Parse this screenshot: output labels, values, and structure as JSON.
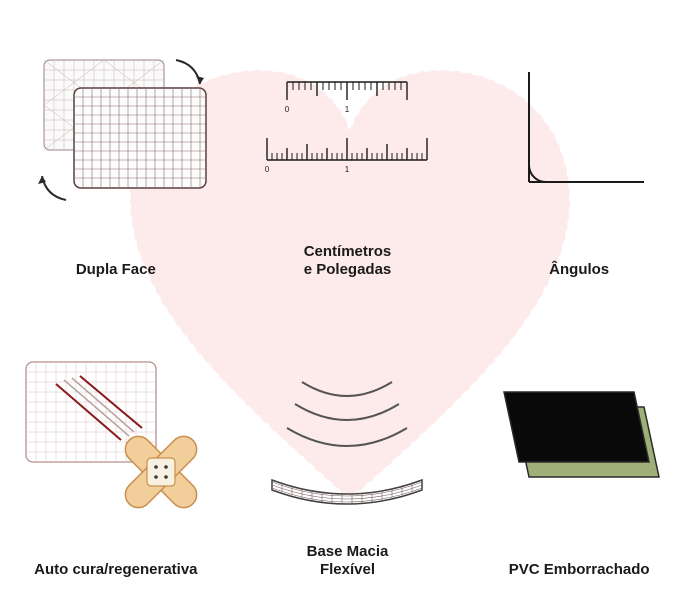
{
  "background_heart_color": "#fde7e7",
  "heart_stitch_color": "#ffffff",
  "features": [
    {
      "label": "Dupla Face",
      "icon": "dupla-face",
      "grid_stroke": "#5a3f3f",
      "grid_fill": "#fafafa",
      "arrow_color": "#2a2a2a",
      "rows": 11,
      "cols": 15
    },
    {
      "label": "Centímetros\ne Polegadas",
      "icon": "ruler",
      "stroke": "#1a1a1a",
      "label_top": [
        "0",
        "1"
      ],
      "label_bottom": [
        "0",
        "1"
      ],
      "font_size": 8
    },
    {
      "label": "Ângulos",
      "icon": "angle",
      "stroke": "#1a1a1a",
      "stroke_width": 2
    },
    {
      "label": "Auto cura/regenerativa",
      "icon": "auto-cura",
      "grid_stroke": "#b89090",
      "grid_fill": "#ffffff",
      "scratch_colors": [
        "#8a1a1a",
        "#a09090",
        "#a09090",
        "#8a1a1a"
      ],
      "bandage_fill": "#f2cf9a",
      "bandage_stroke": "#c89050",
      "bandage_center": "#f8f0e0",
      "dot_color": "#3a3a3a"
    },
    {
      "label": "Base Macia\nFlexível",
      "icon": "flexivel",
      "stroke": "#404040",
      "grid_fill": "#ffffff",
      "wave_count": 3
    },
    {
      "label": "PVC Emborrachado",
      "icon": "pvc",
      "layer1_fill": "#9eb078",
      "layer2_fill": "#0a0a0a",
      "stroke": "#2a2a2a"
    }
  ],
  "label_style": {
    "font_size": 15,
    "font_weight": 700,
    "color": "#1a1a1a"
  }
}
